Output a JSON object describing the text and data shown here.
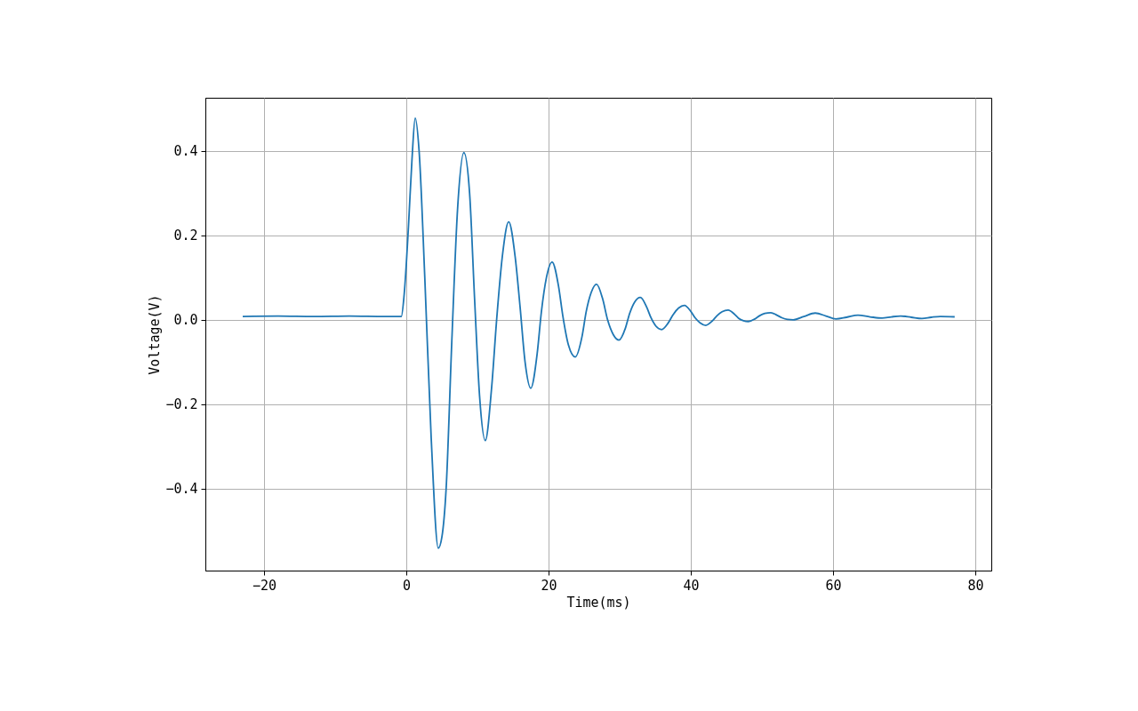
{
  "chart_data": {
    "type": "line",
    "xlabel": "Time(ms)",
    "ylabel": "Voltage(V)",
    "xlim": [
      -28.25,
      82.25
    ],
    "ylim": [
      -0.594,
      0.526
    ],
    "xticks": [
      {
        "value": -20,
        "label": "−20"
      },
      0,
      20,
      40,
      60,
      80
    ],
    "yticks": [
      {
        "value": -0.4,
        "label": "−0.4"
      },
      {
        "value": -0.2,
        "label": "−0.2"
      },
      {
        "value": 0,
        "label": "0.0"
      },
      0.2,
      0.4
    ],
    "grid": true,
    "line_style": "solid",
    "marker": "none",
    "series": [
      {
        "color": "#1f77b4",
        "x": [
          -23,
          -18,
          -13,
          -8,
          -3,
          -0.7,
          -0.3,
          0.3,
          0.8,
          1.25,
          1.8,
          2.6,
          3.5,
          4.5,
          5.0,
          5.6,
          6.4,
          7.2,
          8.1,
          8.9,
          9.6,
          10.3,
          11.1,
          12.0,
          12.7,
          13.5,
          14.4,
          15.3,
          16.0,
          16.7,
          17.5,
          18.4,
          19.0,
          19.7,
          20.5,
          21.4,
          22.0,
          22.8,
          23.75,
          24.7,
          25.3,
          26.0,
          26.75,
          27.6,
          28.3,
          29.1,
          29.9,
          30.8,
          31.4,
          32.1,
          32.9,
          33.8,
          34.4,
          35.1,
          35.9,
          36.8,
          37.5,
          38.3,
          39.1,
          40.0,
          40.6,
          41.3,
          42.1,
          43.0,
          43.7,
          44.4,
          45.25,
          46.1,
          46.7,
          47.4,
          48.1,
          49.0,
          49.7,
          50.4,
          51.25,
          52.1,
          52.8,
          53.6,
          54.4,
          55.9,
          57.5,
          59.0,
          60.4,
          61.9,
          63.5,
          65.2,
          66.9,
          68.2,
          69.5,
          71.0,
          72.5,
          73.8,
          75.1,
          77.1
        ],
        "values": [
          0.008,
          0.009,
          0.008,
          0.009,
          0.008,
          0.008,
          0.06,
          0.22,
          0.38,
          0.478,
          0.4,
          0.1,
          -0.28,
          -0.541,
          -0.515,
          -0.4,
          -0.05,
          0.26,
          0.396,
          0.3,
          0.05,
          -0.18,
          -0.286,
          -0.16,
          0.0,
          0.15,
          0.232,
          0.15,
          0.03,
          -0.1,
          -0.162,
          -0.08,
          0.02,
          0.1,
          0.137,
          0.08,
          0.01,
          -0.06,
          -0.088,
          -0.04,
          0.02,
          0.065,
          0.084,
          0.05,
          0.0,
          -0.035,
          -0.048,
          -0.02,
          0.015,
          0.042,
          0.053,
          0.03,
          0.005,
          -0.015,
          -0.023,
          -0.008,
          0.012,
          0.028,
          0.034,
          0.02,
          0.005,
          -0.007,
          -0.013,
          -0.003,
          0.01,
          0.019,
          0.023,
          0.014,
          0.004,
          -0.002,
          -0.004,
          0.002,
          0.01,
          0.015,
          0.017,
          0.011,
          0.005,
          0.001,
          0.0,
          0.008,
          0.016,
          0.009,
          0.002,
          0.006,
          0.011,
          0.007,
          0.004,
          0.007,
          0.009,
          0.006,
          0.003,
          0.006,
          0.008,
          0.007
        ]
      }
    ]
  }
}
